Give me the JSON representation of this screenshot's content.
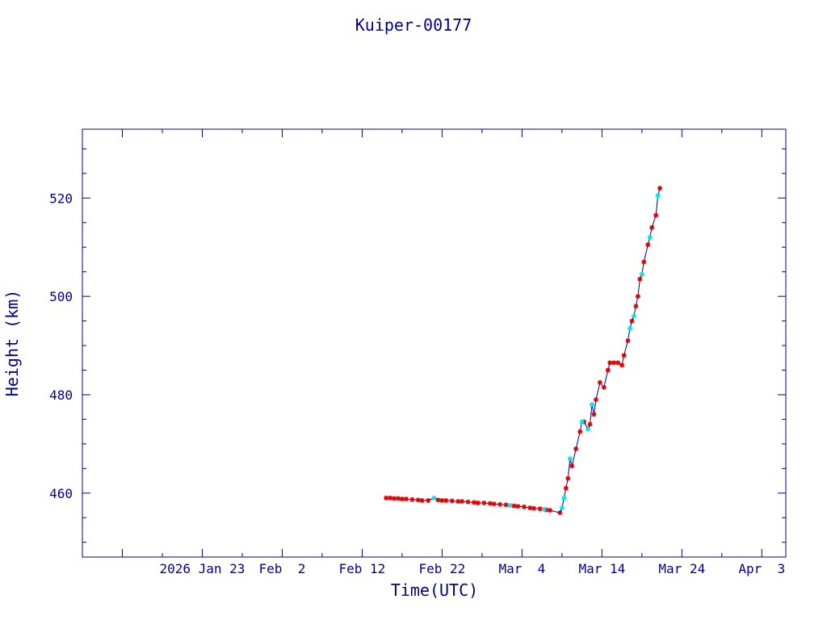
{
  "chart_data": {
    "type": "scatter",
    "title": "Kuiper-00177",
    "xlabel": "Time(UTC)",
    "ylabel": "Height (km)",
    "xlim": [
      "2026-01-08",
      "2026-04-06"
    ],
    "ylim": [
      447,
      534
    ],
    "x_ticks": [
      {
        "date": "2026-01-23",
        "label": "2026 Jan 23"
      },
      {
        "date": "2026-02-02",
        "label": "Feb  2"
      },
      {
        "date": "2026-02-12",
        "label": "Feb 12"
      },
      {
        "date": "2026-02-22",
        "label": "Feb 22"
      },
      {
        "date": "2026-03-04",
        "label": "Mar  4"
      },
      {
        "date": "2026-03-14",
        "label": "Mar 14"
      },
      {
        "date": "2026-03-24",
        "label": "Mar 24"
      },
      {
        "date": "2026-04-03",
        "label": "Apr  3"
      }
    ],
    "y_ticks": [
      460,
      480,
      500,
      520
    ],
    "colors": {
      "axes": "#00008b",
      "line": "#000080",
      "red_marker": "#e00000",
      "cyan_marker": "#00e5ee"
    },
    "series": [
      {
        "marker_color": "#e00000",
        "points": [
          [
            "2026-02-15T00:00",
            459.0
          ],
          [
            "2026-02-15T12:00",
            459.0
          ],
          [
            "2026-02-16T00:00",
            458.9
          ],
          [
            "2026-02-16T12:00",
            458.9
          ],
          [
            "2026-02-17T00:00",
            458.8
          ],
          [
            "2026-02-17T12:00",
            458.8
          ],
          [
            "2026-02-18T06:00",
            458.7
          ],
          [
            "2026-02-19T00:00",
            458.6
          ],
          [
            "2026-02-19T12:00",
            458.5
          ],
          [
            "2026-02-20T06:00",
            458.5
          ],
          [
            "2026-02-21T12:00",
            458.6
          ],
          [
            "2026-02-22T00:00",
            458.5
          ],
          [
            "2026-02-22T12:00",
            458.5
          ],
          [
            "2026-02-23T06:00",
            458.4
          ],
          [
            "2026-02-24T00:00",
            458.3
          ],
          [
            "2026-02-24T12:00",
            458.3
          ],
          [
            "2026-02-25T06:00",
            458.2
          ],
          [
            "2026-02-26T00:00",
            458.1
          ],
          [
            "2026-02-26T12:00",
            458.0
          ],
          [
            "2026-02-27T06:00",
            458.0
          ],
          [
            "2026-02-28T00:00",
            457.9
          ],
          [
            "2026-02-28T12:00",
            457.8
          ],
          [
            "2026-03-01T06:00",
            457.7
          ],
          [
            "2026-03-02T00:00",
            457.6
          ],
          [
            "2026-03-03T00:00",
            457.4
          ],
          [
            "2026-03-03T12:00",
            457.3
          ],
          [
            "2026-03-04T06:00",
            457.2
          ],
          [
            "2026-03-05T00:00",
            457.0
          ],
          [
            "2026-03-05T12:00",
            456.9
          ],
          [
            "2026-03-06T06:00",
            456.8
          ],
          [
            "2026-03-07T00:00",
            456.6
          ],
          [
            "2026-03-07T12:00",
            456.5
          ],
          [
            "2026-03-08T18:00",
            456.0
          ],
          [
            "2026-03-09T12:00",
            461.0
          ],
          [
            "2026-03-09T18:00",
            463.0
          ],
          [
            "2026-03-10T06:00",
            465.5
          ],
          [
            "2026-03-10T18:00",
            469.0
          ],
          [
            "2026-03-11T06:00",
            472.5
          ],
          [
            "2026-03-11T18:00",
            474.5
          ],
          [
            "2026-03-12T12:00",
            474.0
          ],
          [
            "2026-03-13T00:00",
            476.0
          ],
          [
            "2026-03-13T06:00",
            479.0
          ],
          [
            "2026-03-13T18:00",
            482.5
          ],
          [
            "2026-03-14T06:00",
            481.5
          ],
          [
            "2026-03-14T18:00",
            485.0
          ],
          [
            "2026-03-15T00:00",
            486.5
          ],
          [
            "2026-03-15T12:00",
            486.5
          ],
          [
            "2026-03-16T00:00",
            486.5
          ],
          [
            "2026-03-16T12:00",
            486.0
          ],
          [
            "2026-03-16T18:00",
            488.0
          ],
          [
            "2026-03-17T06:00",
            491.0
          ],
          [
            "2026-03-17T18:00",
            495.0
          ],
          [
            "2026-03-18T06:00",
            498.0
          ],
          [
            "2026-03-18T12:00",
            500.0
          ],
          [
            "2026-03-18T18:00",
            503.5
          ],
          [
            "2026-03-19T06:00",
            507.0
          ],
          [
            "2026-03-19T18:00",
            510.5
          ],
          [
            "2026-03-20T06:00",
            514.0
          ],
          [
            "2026-03-20T18:00",
            516.5
          ],
          [
            "2026-03-21T06:00",
            522.0
          ]
        ]
      },
      {
        "marker_color": "#00e5ee",
        "points": [
          [
            "2026-02-21T00:00",
            459.0
          ],
          [
            "2026-03-02T12:00",
            457.5
          ],
          [
            "2026-03-06T18:00",
            456.7
          ],
          [
            "2026-03-09T00:00",
            457.0
          ],
          [
            "2026-03-09T06:00",
            459.0
          ],
          [
            "2026-03-10T00:00",
            467.0
          ],
          [
            "2026-03-11T12:00",
            474.5
          ],
          [
            "2026-03-12T06:00",
            473.0
          ],
          [
            "2026-03-12T18:00",
            478.0
          ],
          [
            "2026-03-17T12:00",
            493.5
          ],
          [
            "2026-03-18T00:00",
            496.0
          ],
          [
            "2026-03-19T00:00",
            504.5
          ],
          [
            "2026-03-20T00:00",
            512.0
          ],
          [
            "2026-03-21T00:00",
            520.5
          ]
        ]
      }
    ]
  }
}
